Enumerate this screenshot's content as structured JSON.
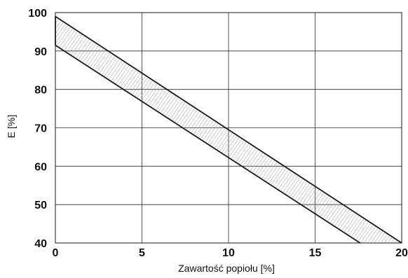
{
  "chart_data": {
    "type": "area",
    "xlabel": "Zawartość popiołu [%]",
    "ylabel": "E  [%]",
    "xlim": [
      0,
      20
    ],
    "ylim": [
      40,
      100
    ],
    "x_ticks": [
      0,
      5,
      10,
      15,
      20
    ],
    "x_tick_labels": [
      "0",
      "5",
      "10",
      "15",
      "20"
    ],
    "y_ticks": [
      40,
      50,
      60,
      70,
      80,
      90,
      100
    ],
    "y_tick_labels": [
      "40",
      "50",
      "60",
      "70",
      "80",
      "90",
      "100"
    ],
    "grid": true,
    "series": [
      {
        "role": "upper-bound",
        "x": [
          0,
          20
        ],
        "y": [
          99,
          40
        ]
      },
      {
        "role": "lower-bound",
        "x": [
          0,
          17.6
        ],
        "y": [
          91.5,
          40
        ]
      }
    ],
    "band_fill": "hatched",
    "colors": {
      "line": "#1a1a1a",
      "grid": "#2b2b2b",
      "hatch": "#9a9a9a"
    }
  }
}
